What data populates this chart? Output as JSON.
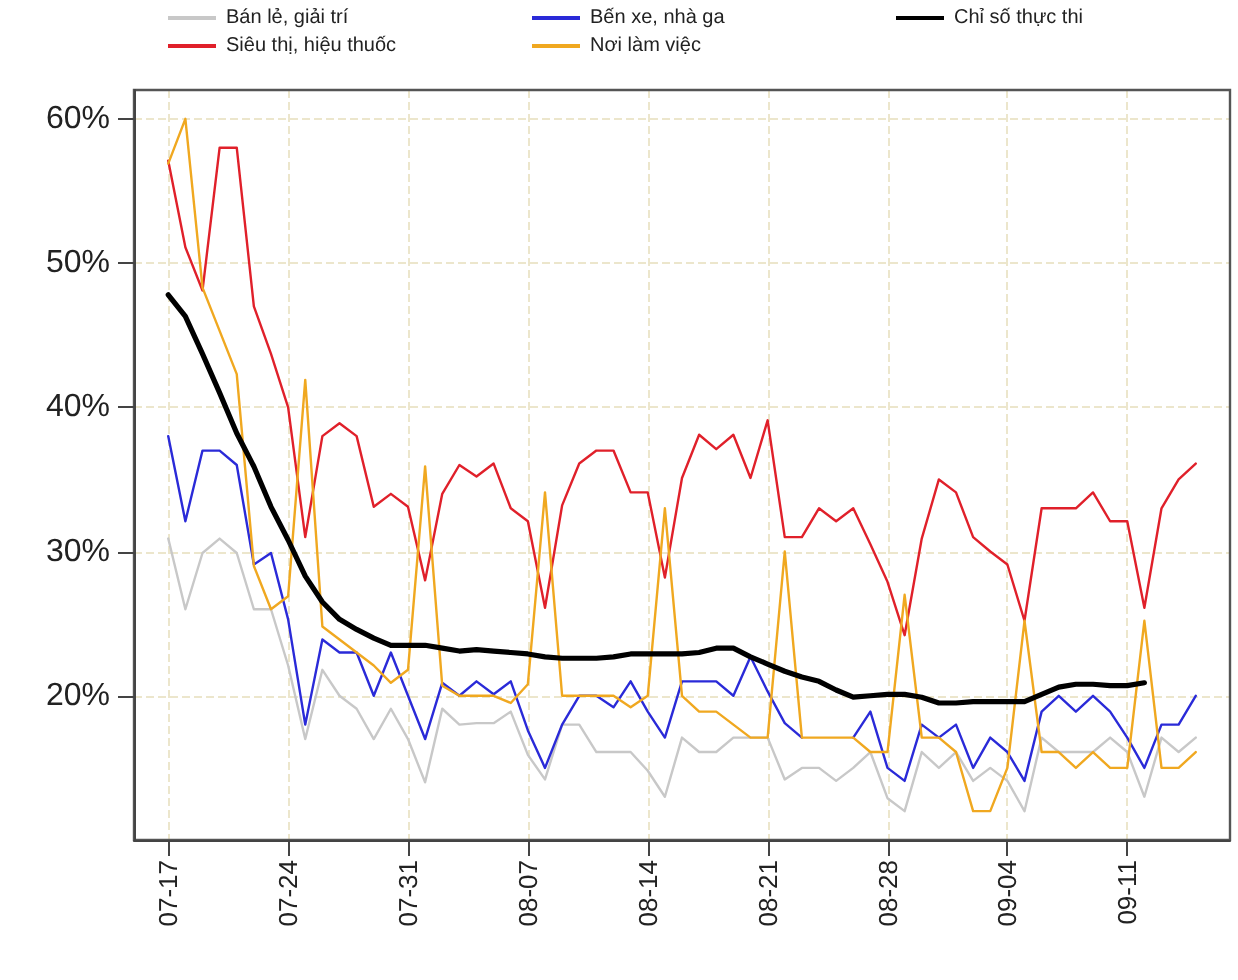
{
  "chart_data": {
    "type": "line",
    "x": [
      "--07-17",
      "--07-18",
      "--07-19",
      "--07-20",
      "--07-21",
      "--07-22",
      "--07-23",
      "--07-24",
      "--07-25",
      "--07-26",
      "--07-27",
      "--07-28",
      "--07-29",
      "--07-30",
      "--07-31",
      "--08-01",
      "--08-02",
      "--08-03",
      "--08-04",
      "--08-05",
      "--08-06",
      "--08-07",
      "--08-08",
      "--08-09",
      "--08-10",
      "--08-11",
      "--08-12",
      "--08-13",
      "--08-14",
      "--08-15",
      "--08-16",
      "--08-17",
      "--08-18",
      "--08-19",
      "--08-20",
      "--08-21",
      "--08-22",
      "--08-23",
      "--08-24",
      "--08-25",
      "--08-26",
      "--08-27",
      "--08-28",
      "--08-29",
      "--08-30",
      "--08-31",
      "--09-01",
      "--09-02",
      "--09-03",
      "--09-04",
      "--09-05",
      "--09-06",
      "--09-07",
      "--09-08",
      "--09-09",
      "--09-10",
      "--09-11",
      "--09-12",
      "--09-13",
      "--09-14",
      "--09-15"
    ],
    "series": [
      {
        "name": "Bán lẻ, giải trí",
        "color": "#c8c8c8",
        "values": [
          30.9,
          26,
          29.9,
          30.9,
          29.9,
          26,
          26,
          22.1,
          17,
          21.8,
          20,
          19.1,
          17,
          19.1,
          17,
          14,
          19.1,
          18,
          18.1,
          18.1,
          18.9,
          15.9,
          14.2,
          18,
          18,
          16.1,
          16.1,
          16.1,
          14.8,
          13,
          17.1,
          16.1,
          16.1,
          17.1,
          17.1,
          17.1,
          14.2,
          15,
          15,
          14.1,
          15,
          16.1,
          12.9,
          12,
          16.1,
          15,
          16.1,
          14.1,
          15,
          14.1,
          12,
          17.1,
          16.1,
          16.1,
          16.1,
          17.1,
          16.1,
          13,
          17.1,
          16.1,
          17.1
        ]
      },
      {
        "name": "Siêu thị, hiệu thuốc",
        "color": "#e0202a",
        "values": [
          57.1,
          51.1,
          48.1,
          58,
          58,
          47,
          43.7,
          40,
          31,
          38,
          38.9,
          38,
          33.1,
          34,
          33.1,
          28,
          34,
          36,
          35.2,
          36.1,
          33,
          32.1,
          26.1,
          33.2,
          36.1,
          37,
          37,
          34.1,
          34.1,
          28.2,
          35.1,
          38.1,
          37.1,
          38.1,
          35.1,
          39.1,
          31,
          31,
          33,
          32.1,
          33,
          30.5,
          27.9,
          24.2,
          30.9,
          35,
          34.1,
          31,
          30,
          29.1,
          25.2,
          33,
          33,
          33,
          34.1,
          32.1,
          32.1,
          26.1,
          33,
          35,
          36.1
        ]
      },
      {
        "name": "Bến xe, nhà ga",
        "color": "#2a2ad8",
        "values": [
          38,
          32.1,
          37,
          37,
          36,
          29.1,
          29.9,
          25.3,
          18,
          23.9,
          23,
          23,
          20,
          23,
          20,
          17,
          20.9,
          20,
          21,
          20.1,
          21,
          17.6,
          15,
          18,
          20,
          20,
          19.2,
          21,
          18.9,
          17.1,
          21,
          21,
          21,
          20,
          22.7,
          20.3,
          18.1,
          17.1,
          null,
          null,
          17.1,
          18.9,
          15,
          14.1,
          18,
          17.1,
          18,
          15,
          17.1,
          16.1,
          14.1,
          18.9,
          20,
          18.9,
          20,
          18.9,
          17.1,
          15,
          18,
          18,
          20
        ]
      },
      {
        "name": "Nơi làm việc",
        "color": "#f0a820",
        "values": [
          56.9,
          60,
          48.3,
          45.3,
          42.3,
          29,
          26,
          26.9,
          41.9,
          24.8,
          23.9,
          23,
          22.1,
          20.9,
          21.8,
          35.9,
          20.7,
          20,
          20,
          20,
          19.5,
          20.8,
          34.1,
          20,
          20,
          20,
          20,
          19.2,
          20,
          33,
          20,
          18.9,
          18.9,
          18,
          17.1,
          17.1,
          30,
          17.1,
          17.1,
          17.1,
          17.1,
          16.1,
          16.1,
          27,
          17.1,
          17.1,
          16.1,
          12,
          12,
          15,
          25.2,
          16.1,
          16.1,
          15,
          16.1,
          15,
          15,
          25.2,
          15,
          15,
          16.1
        ]
      },
      {
        "name": "Chỉ số thực thi",
        "color": "#000000",
        "values": [
          47.8,
          46.3,
          43.7,
          41,
          38.2,
          35.9,
          33.1,
          30.8,
          28.3,
          26.5,
          25.3,
          24.6,
          24,
          23.5,
          23.5,
          23.5,
          23.3,
          23.1,
          23.2,
          23.1,
          23,
          22.9,
          22.7,
          22.6,
          22.6,
          22.6,
          22.7,
          22.9,
          22.9,
          22.9,
          22.9,
          23,
          23.3,
          23.3,
          22.7,
          22.2,
          21.7,
          21.3,
          21,
          20.4,
          19.9,
          20,
          20.1,
          20.1,
          19.9,
          19.5,
          19.5,
          19.6,
          19.6,
          19.6,
          19.6,
          20.1,
          20.6,
          20.8,
          20.8,
          20.7,
          20.7,
          20.9,
          null,
          null,
          null
        ]
      }
    ],
    "xlim": [
      "--07-15",
      "--09-17"
    ],
    "xticks": [
      {
        "value": "--07-17",
        "label": "07-17"
      },
      {
        "value": "--07-24",
        "label": "07-24"
      },
      {
        "value": "--07-31",
        "label": "07-31"
      },
      {
        "value": "--08-07",
        "label": "08-07"
      },
      {
        "value": "--08-14",
        "label": "08-14"
      },
      {
        "value": "--08-21",
        "label": "08-21"
      },
      {
        "value": "--08-28",
        "label": "08-28"
      },
      {
        "value": "--09-04",
        "label": "09-04"
      },
      {
        "value": "--09-11",
        "label": "09-11"
      }
    ],
    "ylim": [
      10,
      62
    ],
    "yticks": [
      {
        "value": 20,
        "label": "20%"
      },
      {
        "value": 30,
        "label": "30%"
      },
      {
        "value": 40,
        "label": "40%"
      },
      {
        "value": 50,
        "label": "50%"
      },
      {
        "value": 60,
        "label": "60%"
      }
    ],
    "grid": true,
    "legend": "top",
    "marker": "none",
    "line_style": "solid"
  }
}
